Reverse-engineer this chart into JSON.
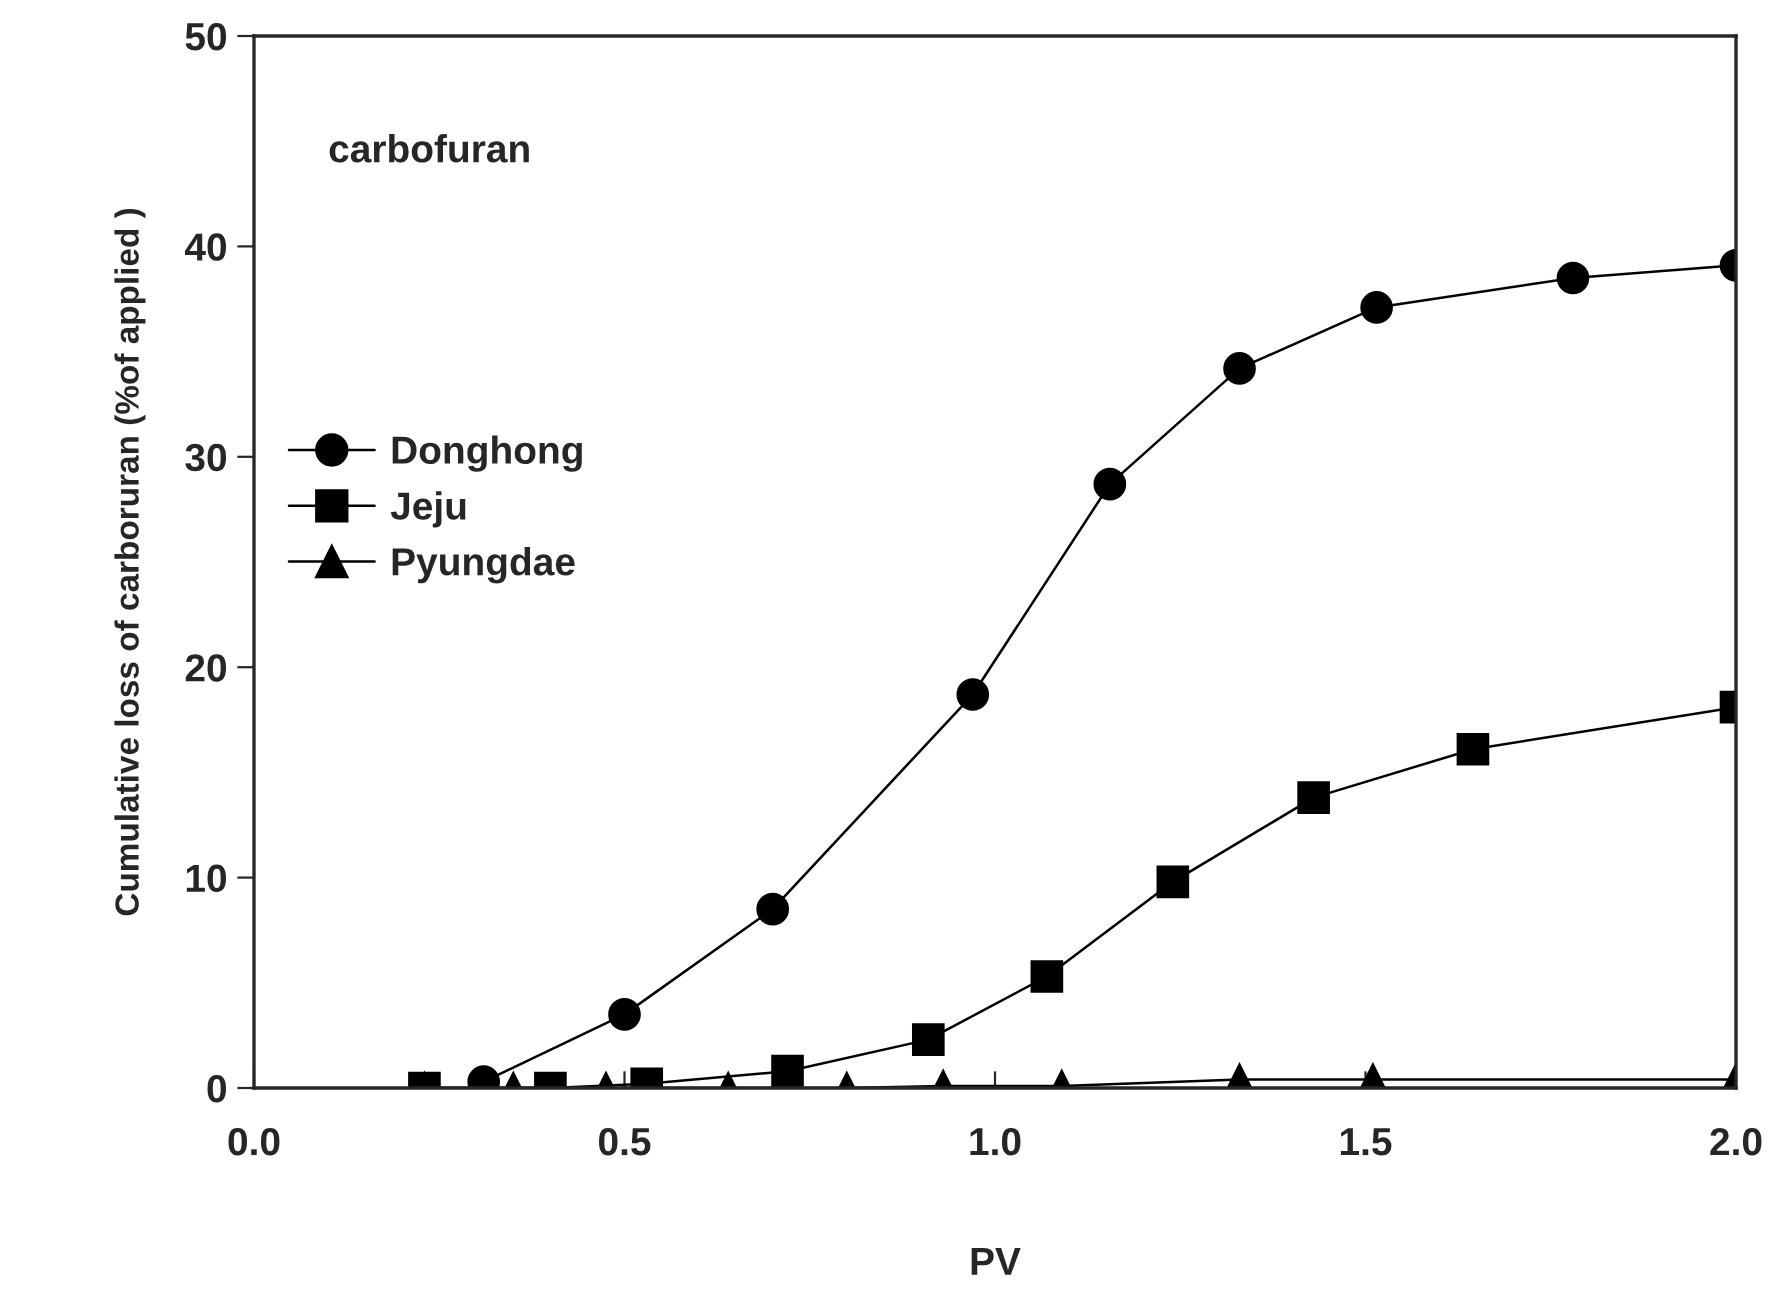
{
  "chart_data": {
    "type": "line",
    "xlabel": "PV",
    "ylabel": "Cumulative loss of carboruran (%of applied )",
    "annotations": [
      {
        "text": "carbofuran"
      }
    ],
    "xlim": [
      0,
      2.0
    ],
    "xticks": [
      {
        "value": 0,
        "label": "0.0"
      },
      {
        "value": 0.5,
        "label": "0.5"
      },
      {
        "value": 1.0,
        "label": "1.0"
      },
      {
        "value": 1.5,
        "label": "1.5"
      },
      {
        "value": 2.0,
        "label": "2.0"
      }
    ],
    "ylim": [
      0,
      50
    ],
    "yticks": [
      0,
      10,
      20,
      30,
      40,
      50
    ],
    "grid": false,
    "legend": "left",
    "series": [
      {
        "name": "Donghong",
        "color": "#000000",
        "marker": "circle",
        "x": [
          0.31,
          0.5,
          0.7,
          0.97,
          1.155,
          1.33,
          1.515,
          1.78,
          2.0
        ],
        "values": [
          0.3,
          3.5,
          8.5,
          18.7,
          28.7,
          34.2,
          37.1,
          38.5,
          39.1
        ]
      },
      {
        "name": "Jeju",
        "color": "#000000",
        "marker": "square",
        "x": [
          0.23,
          0.4,
          0.53,
          0.72,
          0.91,
          1.07,
          1.24,
          1.43,
          1.645,
          2.0
        ],
        "values": [
          0,
          0,
          0.2,
          0.8,
          2.3,
          5.3,
          9.8,
          13.8,
          16.1,
          18.1
        ]
      },
      {
        "name": "Pyungdae",
        "color": "#000000",
        "marker": "triangle",
        "x": [
          0.23,
          0.35,
          0.475,
          0.64,
          0.8,
          0.93,
          1.09,
          1.33,
          1.51,
          2.0
        ],
        "values": [
          0,
          0,
          0,
          0,
          0,
          0.1,
          0.1,
          0.4,
          0.4,
          0.4
        ]
      }
    ]
  }
}
